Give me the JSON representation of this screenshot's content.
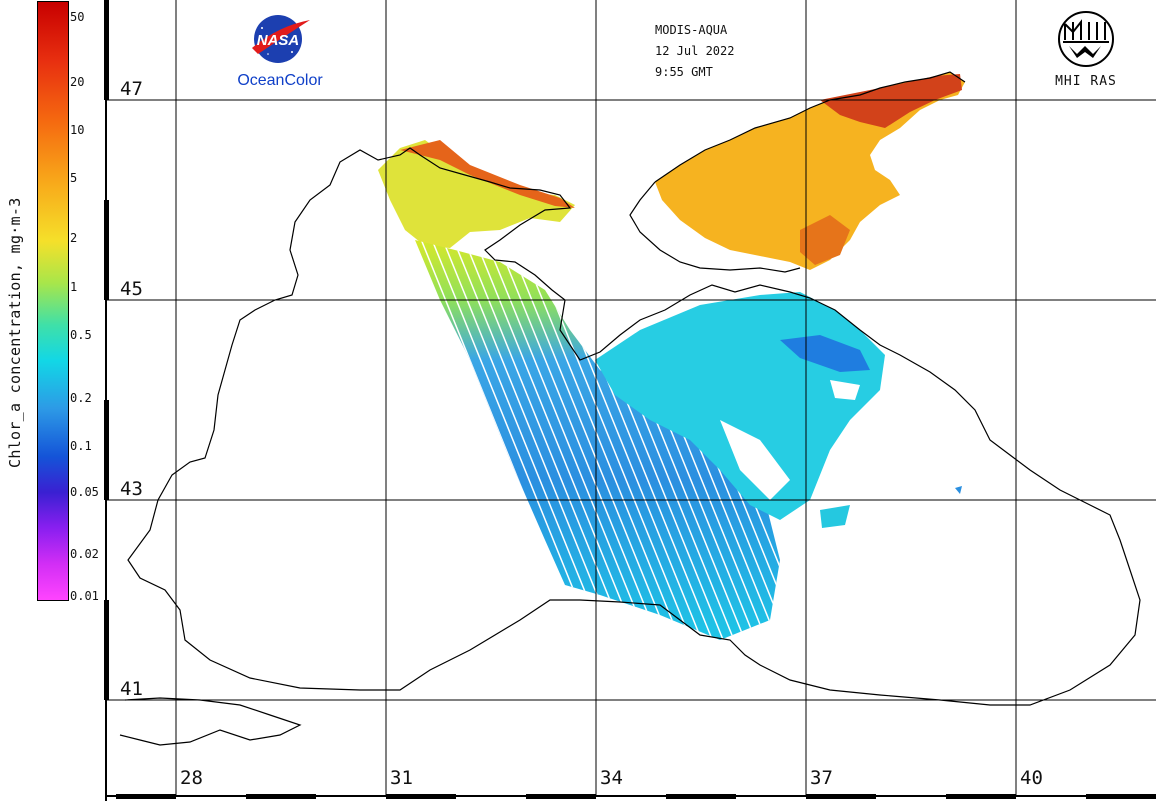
{
  "header": {
    "sensor": "MODIS-AQUA",
    "date": "12 Jul 2022",
    "time": "9:55 GMT"
  },
  "logos": {
    "left_text": "NASA",
    "left_caption": "OceanColor",
    "right_caption": "MHI RAS"
  },
  "colorbar": {
    "title": "Chlor_a concentration, mg·m-3",
    "ticks": [
      {
        "label": "50",
        "frac": 0.025
      },
      {
        "label": "20",
        "frac": 0.133
      },
      {
        "label": "10",
        "frac": 0.214
      },
      {
        "label": "5",
        "frac": 0.294
      },
      {
        "label": "2",
        "frac": 0.395
      },
      {
        "label": "1",
        "frac": 0.476
      },
      {
        "label": "0.5",
        "frac": 0.557
      },
      {
        "label": "0.2",
        "frac": 0.662
      },
      {
        "label": "0.1",
        "frac": 0.742
      },
      {
        "label": "0.05",
        "frac": 0.819
      },
      {
        "label": "0.02",
        "frac": 0.923
      },
      {
        "label": "0.01",
        "frac": 0.993
      }
    ]
  },
  "grid": {
    "latitudes": [
      "47",
      "45",
      "43",
      "41"
    ],
    "longitudes": [
      "28",
      "31",
      "34",
      "37",
      "40"
    ]
  },
  "colors": {
    "water": "#ffffff",
    "grid": "#000000",
    "label": "#111111"
  }
}
